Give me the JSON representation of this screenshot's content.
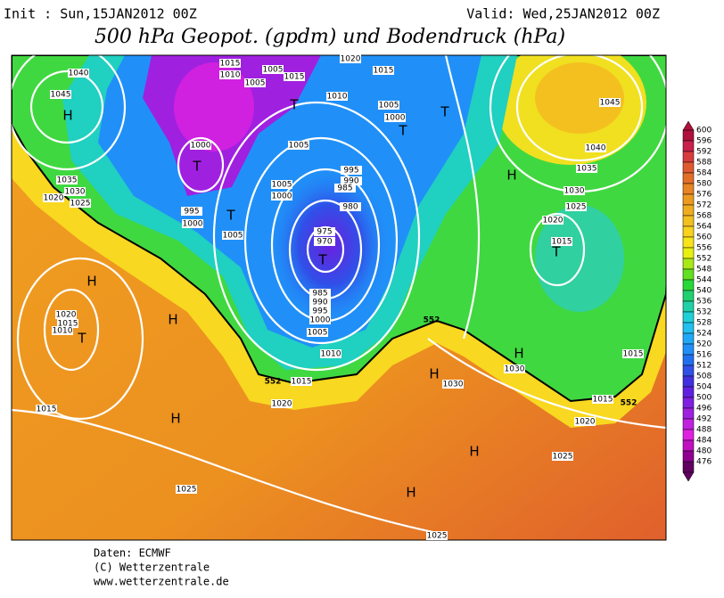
{
  "header": {
    "init": "Init : Sun,15JAN2012 00Z",
    "valid": "Valid: Wed,25JAN2012 00Z",
    "title": "500 hPa Geopot. (gpdm) und Bodendruck (hPa)"
  },
  "map": {
    "pressure_labels": [
      "1040",
      "1045",
      "1035",
      "1030",
      "1025",
      "1020",
      "1015",
      "1010",
      "1005",
      "1015",
      "1005",
      "1020",
      "1015",
      "1010",
      "1005",
      "1000",
      "1005",
      "1000",
      "995",
      "1000",
      "1005",
      "1005",
      "1000",
      "995",
      "990",
      "985",
      "980",
      "975",
      "970",
      "985",
      "990",
      "995",
      "1000",
      "1005",
      "1010",
      "1015",
      "1020",
      "1020",
      "1015",
      "1010",
      "1015",
      "1025",
      "1025",
      "1030",
      "1035",
      "1040",
      "1045",
      "1020",
      "1015",
      "1030",
      "1030",
      "1015",
      "1015",
      "1020",
      "1025",
      "1025"
    ],
    "contour_labels": [
      "552",
      "552",
      "552"
    ],
    "centers": [
      "H",
      "T",
      "T",
      "T",
      "T",
      "T",
      "T",
      "H",
      "T",
      "H",
      "H",
      "T",
      "H",
      "H",
      "H",
      "H",
      "H"
    ]
  },
  "colorbar": {
    "levels": [
      600,
      596,
      592,
      588,
      584,
      580,
      576,
      572,
      568,
      564,
      560,
      556,
      552,
      548,
      544,
      540,
      536,
      532,
      528,
      524,
      520,
      516,
      512,
      508,
      504,
      500,
      496,
      492,
      488,
      484,
      480,
      476
    ],
    "colors": [
      "#b0103c",
      "#c8204a",
      "#d83c3c",
      "#e05a30",
      "#e46e28",
      "#e88424",
      "#ec9a20",
      "#f0ac20",
      "#f4c020",
      "#f8d21c",
      "#f8e418",
      "#e8f010",
      "#a8e818",
      "#60e020",
      "#28d838",
      "#20d070",
      "#20d0a8",
      "#20d0d8",
      "#20c0f0",
      "#20a8f8",
      "#2090f8",
      "#2070f0",
      "#3050e8",
      "#4030e0",
      "#6020e0",
      "#8020e0",
      "#a020e0",
      "#c020e0",
      "#e020e0",
      "#c010c0",
      "#900090",
      "#600060"
    ]
  },
  "footer": [
    "Daten: ECMWF",
    "(C) Wetterzentrale",
    "www.wetterzentrale.de"
  ]
}
